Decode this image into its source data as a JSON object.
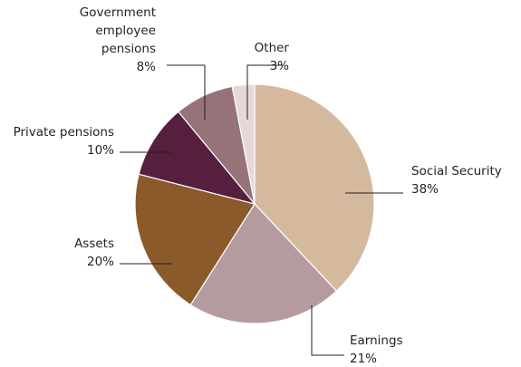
{
  "chart_data": {
    "type": "pie",
    "title": "",
    "start_angle_deg": 0,
    "direction": "clockwise",
    "legend": "none",
    "slices": [
      {
        "key": "social-security",
        "label_lines": [
          "Social Security"
        ],
        "value_label": "38%",
        "value": 38,
        "color": "#d5b99f"
      },
      {
        "key": "earnings",
        "label_lines": [
          "Earnings"
        ],
        "value_label": "21%",
        "value": 21,
        "color": "#b59ba0"
      },
      {
        "key": "assets",
        "label_lines": [
          "Assets"
        ],
        "value_label": "20%",
        "value": 20,
        "color": "#8a5a2a"
      },
      {
        "key": "private-pensions",
        "label_lines": [
          "Private pensions"
        ],
        "value_label": "10%",
        "value": 10,
        "color": "#561f3e"
      },
      {
        "key": "government-employee-pensions",
        "label_lines": [
          "Government",
          "employee",
          "pensions"
        ],
        "value_label": "8%",
        "value": 8,
        "color": "#957379"
      },
      {
        "key": "other",
        "label_lines": [
          "Other"
        ],
        "value_label": "3%",
        "value": 3,
        "color": "#e6d7d9"
      }
    ]
  }
}
